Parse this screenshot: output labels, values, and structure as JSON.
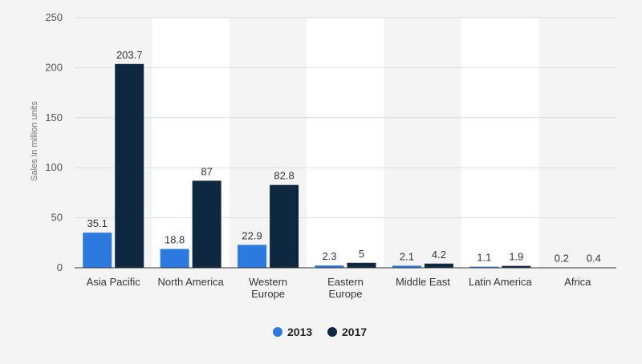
{
  "chart_data": {
    "type": "bar",
    "ylabel": "Sales in million units",
    "categories": [
      [
        "Asia Pacific"
      ],
      [
        "North America"
      ],
      [
        "Western",
        "Europe"
      ],
      [
        "Eastern",
        "Europe"
      ],
      [
        "Middle  East"
      ],
      [
        "Latin America"
      ],
      [
        "Africa"
      ]
    ],
    "series": [
      {
        "name": "2013",
        "color": "#2b7ae0",
        "values": [
          35.1,
          18.8,
          22.9,
          2.3,
          2.1,
          1.1,
          0.2
        ],
        "labels": [
          "35.1",
          "18.8",
          "22.9",
          "2.3",
          "2.1",
          "1.1",
          "0.2"
        ]
      },
      {
        "name": "2017",
        "color": "#0e2841",
        "values": [
          203.7,
          87,
          82.8,
          5,
          4.2,
          1.9,
          0.4
        ],
        "labels": [
          "203.7",
          "87",
          "82.8",
          "5",
          "4.2",
          "1.9",
          "0.4"
        ]
      }
    ],
    "ylim": [
      0,
      250
    ],
    "yticks": [
      0,
      50,
      100,
      150,
      200,
      250
    ],
    "grid": true,
    "legend_position": "bottom-center"
  }
}
